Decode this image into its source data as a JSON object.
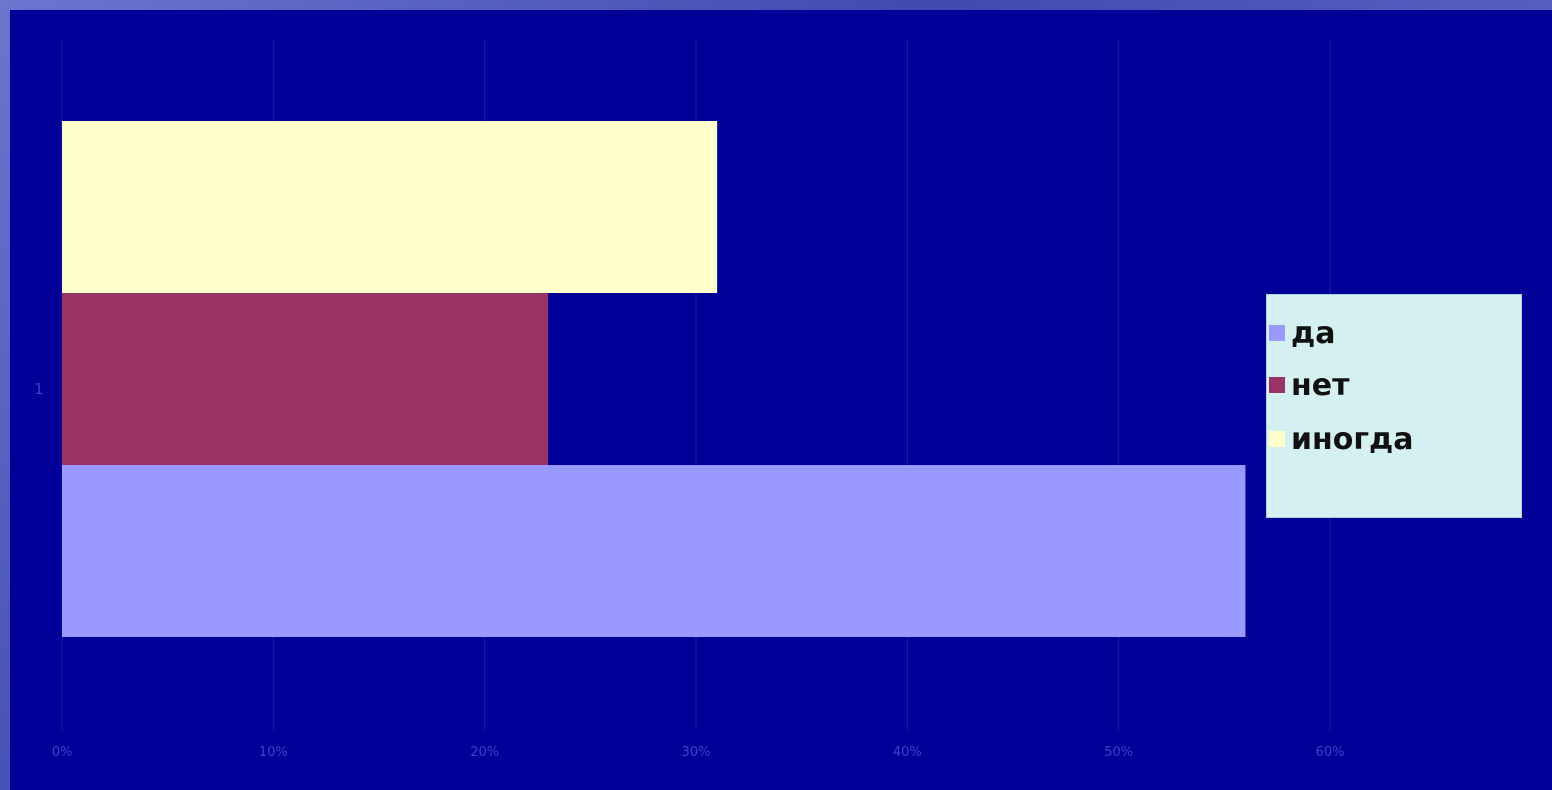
{
  "chart_data": {
    "type": "bar",
    "orientation": "horizontal",
    "categories": [
      "1"
    ],
    "series": [
      {
        "name": "да",
        "values": [
          56
        ],
        "color": "#9999ff"
      },
      {
        "name": "нет",
        "values": [
          23
        ],
        "color": "#993366"
      },
      {
        "name": "иногда",
        "values": [
          31
        ],
        "color": "#ffffcc"
      }
    ],
    "x_ticks": [
      "0%",
      "10%",
      "20%",
      "30%",
      "40%",
      "50%",
      "60%"
    ],
    "xlim": [
      0,
      60
    ],
    "unit": "%",
    "grid": true,
    "legend_position": "right",
    "background": "#000099"
  }
}
